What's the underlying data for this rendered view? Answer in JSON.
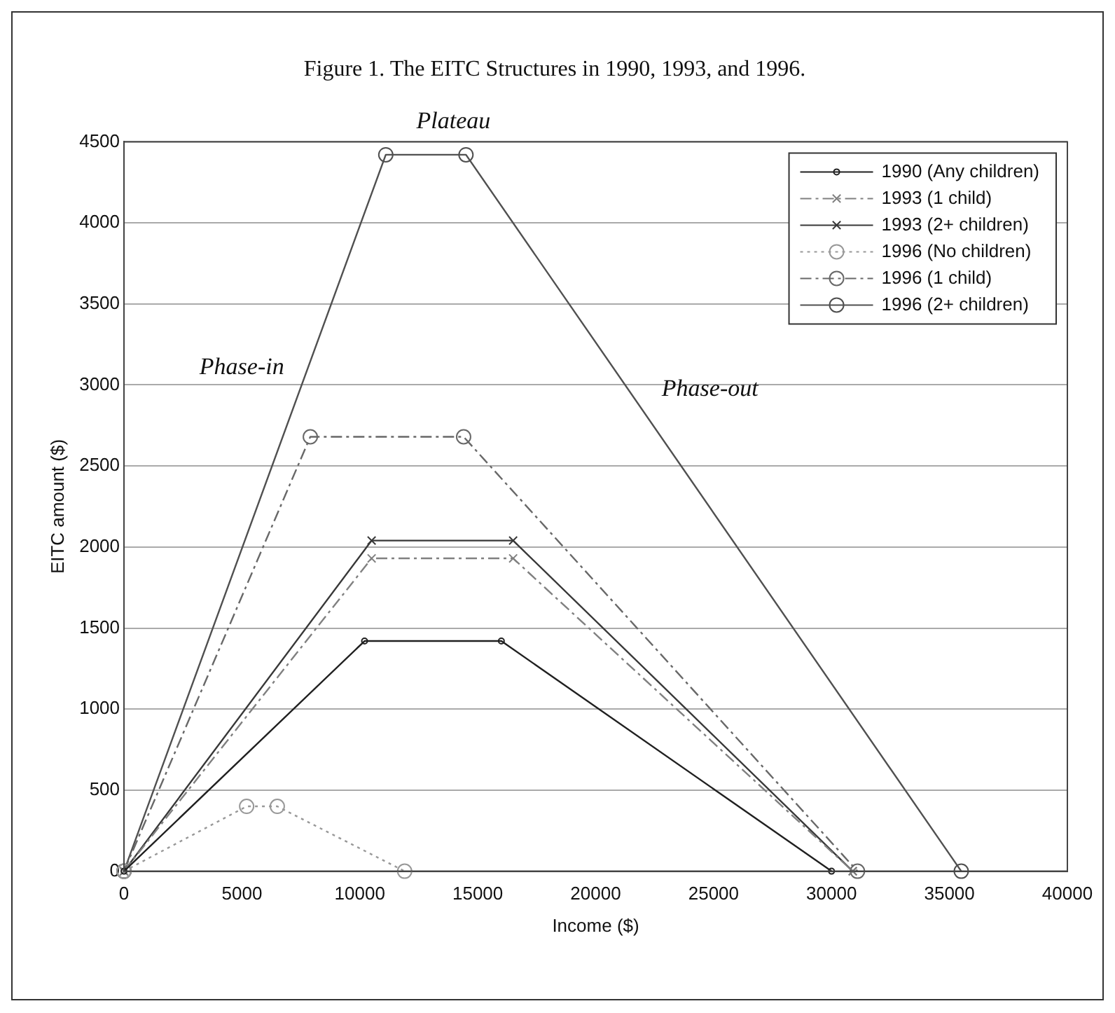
{
  "chart_data": {
    "type": "line",
    "title": "Figure 1. The EITC Structures in 1990, 1993, and 1996.",
    "xlabel": "Income ($)",
    "ylabel": "EITC amount ($)",
    "annotations": [
      "Plateau",
      "Phase-in",
      "Phase-out"
    ],
    "series": [
      {
        "name": "1990 (Any children)",
        "color": "#202020",
        "marker": "circle",
        "line_style": "solid",
        "x": [
          0,
          10200,
          16000,
          30000
        ],
        "values": [
          0,
          1420,
          1420,
          0
        ]
      },
      {
        "name": "1993 (1 child)",
        "color": "#808080",
        "marker": "cross",
        "line_style": "dashed",
        "x": [
          0,
          10500,
          16500,
          30900
        ],
        "values": [
          0,
          1930,
          1930,
          0
        ]
      },
      {
        "name": "1993 (2+ children)",
        "color": "#383838",
        "marker": "cross",
        "line_style": "solid",
        "x": [
          0,
          10500,
          16500,
          30900
        ],
        "values": [
          0,
          2040,
          2040,
          0
        ]
      },
      {
        "name": "1996 (No children)",
        "color": "#989898",
        "marker": "circle",
        "line_style": "dotted",
        "x": [
          0,
          5200,
          6500,
          11900
        ],
        "values": [
          0,
          400,
          400,
          0
        ]
      },
      {
        "name": "1996 (1 child)",
        "color": "#686868",
        "marker": "circle",
        "line_style": "dashed",
        "x": [
          0,
          7900,
          14400,
          31100
        ],
        "values": [
          0,
          2680,
          2680,
          0
        ]
      },
      {
        "name": "1996 (2+ children)",
        "color": "#505050",
        "marker": "circle",
        "line_style": "solid",
        "x": [
          0,
          11100,
          14500,
          35500
        ],
        "values": [
          0,
          4420,
          4420,
          0
        ]
      }
    ],
    "xlim": [
      0,
      40000
    ],
    "xticks": [
      0,
      5000,
      10000,
      15000,
      20000,
      25000,
      30000,
      35000,
      40000
    ],
    "ylim": [
      0,
      4500
    ],
    "yticks": [
      0,
      500,
      1000,
      1500,
      2000,
      2500,
      3000,
      3500,
      4000,
      4500
    ],
    "grid": "y",
    "legend": "top right"
  }
}
